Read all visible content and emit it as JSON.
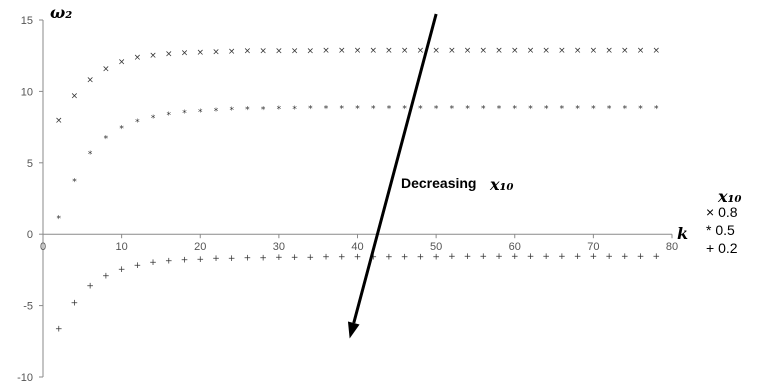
{
  "chart_data": {
    "type": "scatter",
    "title": "",
    "y_axis_label": "ω₂",
    "x_axis_label": "k",
    "xlim": [
      0,
      80
    ],
    "ylim": [
      -10,
      15
    ],
    "x_ticks": [
      0,
      10,
      20,
      30,
      40,
      50,
      60,
      70,
      80
    ],
    "y_ticks": [
      -10,
      -5,
      0,
      5,
      10,
      15
    ],
    "grid": false,
    "legend_title": "x₁₀",
    "legend_position": "right",
    "series": [
      {
        "name": "0.8",
        "marker": "×",
        "x": [
          2,
          4,
          6,
          8,
          10,
          12,
          14,
          16,
          18,
          20,
          22,
          24,
          26,
          28,
          30,
          32,
          34,
          36,
          38,
          40,
          42,
          44,
          46,
          48,
          50,
          52,
          54,
          56,
          58,
          60,
          62,
          64,
          66,
          68,
          70,
          72,
          74,
          76,
          78
        ],
        "y": [
          8.0,
          9.7,
          10.85,
          11.6,
          12.1,
          12.4,
          12.55,
          12.65,
          12.72,
          12.76,
          12.8,
          12.83,
          12.85,
          12.86,
          12.87,
          12.88,
          12.88,
          12.89,
          12.89,
          12.89,
          12.9,
          12.9,
          12.9,
          12.9,
          12.9,
          12.9,
          12.9,
          12.9,
          12.9,
          12.9,
          12.9,
          12.9,
          12.9,
          12.9,
          12.9,
          12.9,
          12.9,
          12.9,
          12.9
        ]
      },
      {
        "name": "0.5",
        "marker": "*",
        "x": [
          2,
          4,
          6,
          8,
          10,
          12,
          14,
          16,
          18,
          20,
          22,
          24,
          26,
          28,
          30,
          32,
          34,
          36,
          38,
          40,
          42,
          44,
          46,
          48,
          50,
          52,
          54,
          56,
          58,
          60,
          62,
          64,
          66,
          68,
          70,
          72,
          74,
          76,
          78
        ],
        "y": [
          1.1,
          3.7,
          5.6,
          6.7,
          7.4,
          7.85,
          8.15,
          8.35,
          8.48,
          8.57,
          8.64,
          8.68,
          8.72,
          8.74,
          8.76,
          8.78,
          8.79,
          8.8,
          8.8,
          8.81,
          8.81,
          8.82,
          8.82,
          8.82,
          8.82,
          8.82,
          8.82,
          8.82,
          8.82,
          8.82,
          8.82,
          8.82,
          8.82,
          8.82,
          8.82,
          8.82,
          8.82,
          8.82,
          8.82
        ]
      },
      {
        "name": "0.2",
        "marker": "+",
        "x": [
          2,
          4,
          6,
          8,
          10,
          12,
          14,
          16,
          18,
          20,
          22,
          24,
          26,
          28,
          30,
          32,
          34,
          36,
          38,
          40,
          42,
          44,
          46,
          48,
          50,
          52,
          54,
          56,
          58,
          60,
          62,
          64,
          66,
          68,
          70,
          72,
          74,
          76,
          78
        ],
        "y": [
          -6.6,
          -4.8,
          -3.6,
          -2.9,
          -2.45,
          -2.15,
          -1.95,
          -1.85,
          -1.77,
          -1.72,
          -1.68,
          -1.65,
          -1.63,
          -1.62,
          -1.6,
          -1.59,
          -1.58,
          -1.57,
          -1.57,
          -1.56,
          -1.56,
          -1.55,
          -1.55,
          -1.55,
          -1.55,
          -1.54,
          -1.54,
          -1.54,
          -1.54,
          -1.54,
          -1.54,
          -1.53,
          -1.53,
          -1.53,
          -1.53,
          -1.53,
          -1.53,
          -1.53,
          -1.53
        ]
      }
    ],
    "annotation": {
      "text": "Decreasing",
      "variable": "x₁₀",
      "arrow_from": [
        50,
        15
      ],
      "arrow_to": [
        39,
        -7.3
      ]
    }
  }
}
